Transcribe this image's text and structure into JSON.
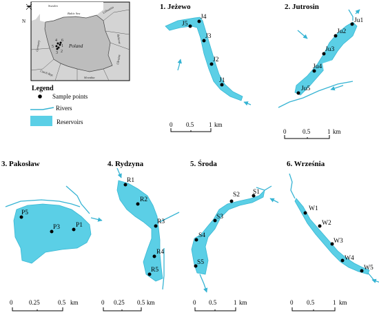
{
  "inset": {
    "labels": {
      "sweden": "Sweden",
      "baltic": "Baltic Sea",
      "lithuania": "Lithuania",
      "belarus": "Belarus",
      "germany": "Germany",
      "poland": "Poland",
      "ukraine": "Ukraine",
      "czech": "Czech Rep.",
      "slovakia": "Slovakia",
      "north": "N"
    },
    "site_numbers": [
      "1",
      "2",
      "3",
      "4",
      "5",
      "6"
    ]
  },
  "legend": {
    "title": "Legend",
    "items": [
      {
        "label": "Sample points",
        "symbol": "dot"
      },
      {
        "label": "Rivers",
        "symbol": "line"
      },
      {
        "label": "Reservoirs",
        "symbol": "fill"
      }
    ]
  },
  "colors": {
    "reservoir": "#5bcfe6",
    "river": "#35b3d3",
    "point": "#000000"
  },
  "maps": [
    {
      "title": "1. Jeżewo",
      "points": [
        "J1",
        "J2",
        "J3",
        "J4",
        "J5"
      ],
      "scale": {
        "ticks": [
          "0",
          "0.5",
          "1"
        ],
        "unit": "km"
      }
    },
    {
      "title": "2. Jutrosin",
      "points": [
        "Ju1",
        "Ju2",
        "Ju3",
        "Ju4",
        "Ju5"
      ],
      "scale": {
        "ticks": [
          "0",
          "0.5",
          "1"
        ],
        "unit": "km"
      }
    },
    {
      "title": "3. Pakosław",
      "points": [
        "P1",
        "P3",
        "P5"
      ],
      "scale": {
        "ticks": [
          "0",
          "0.25",
          "0.5"
        ],
        "unit": "km"
      }
    },
    {
      "title": "4. Rydzyna",
      "points": [
        "R1",
        "R2",
        "R3",
        "R4",
        "R5"
      ],
      "scale": {
        "ticks": [
          "0",
          "0.25",
          "0.5"
        ],
        "unit": "km"
      }
    },
    {
      "title": "5. Środa",
      "points": [
        "S1",
        "S2",
        "S3",
        "S4",
        "S5"
      ],
      "scale": {
        "ticks": [
          "0",
          "0.5",
          "1"
        ],
        "unit": "km"
      }
    },
    {
      "title": "6. Września",
      "points": [
        "W1",
        "W2",
        "W3",
        "W4",
        "W5"
      ],
      "scale": {
        "ticks": [
          "0",
          "0.5",
          "1"
        ],
        "unit": "km"
      }
    }
  ]
}
